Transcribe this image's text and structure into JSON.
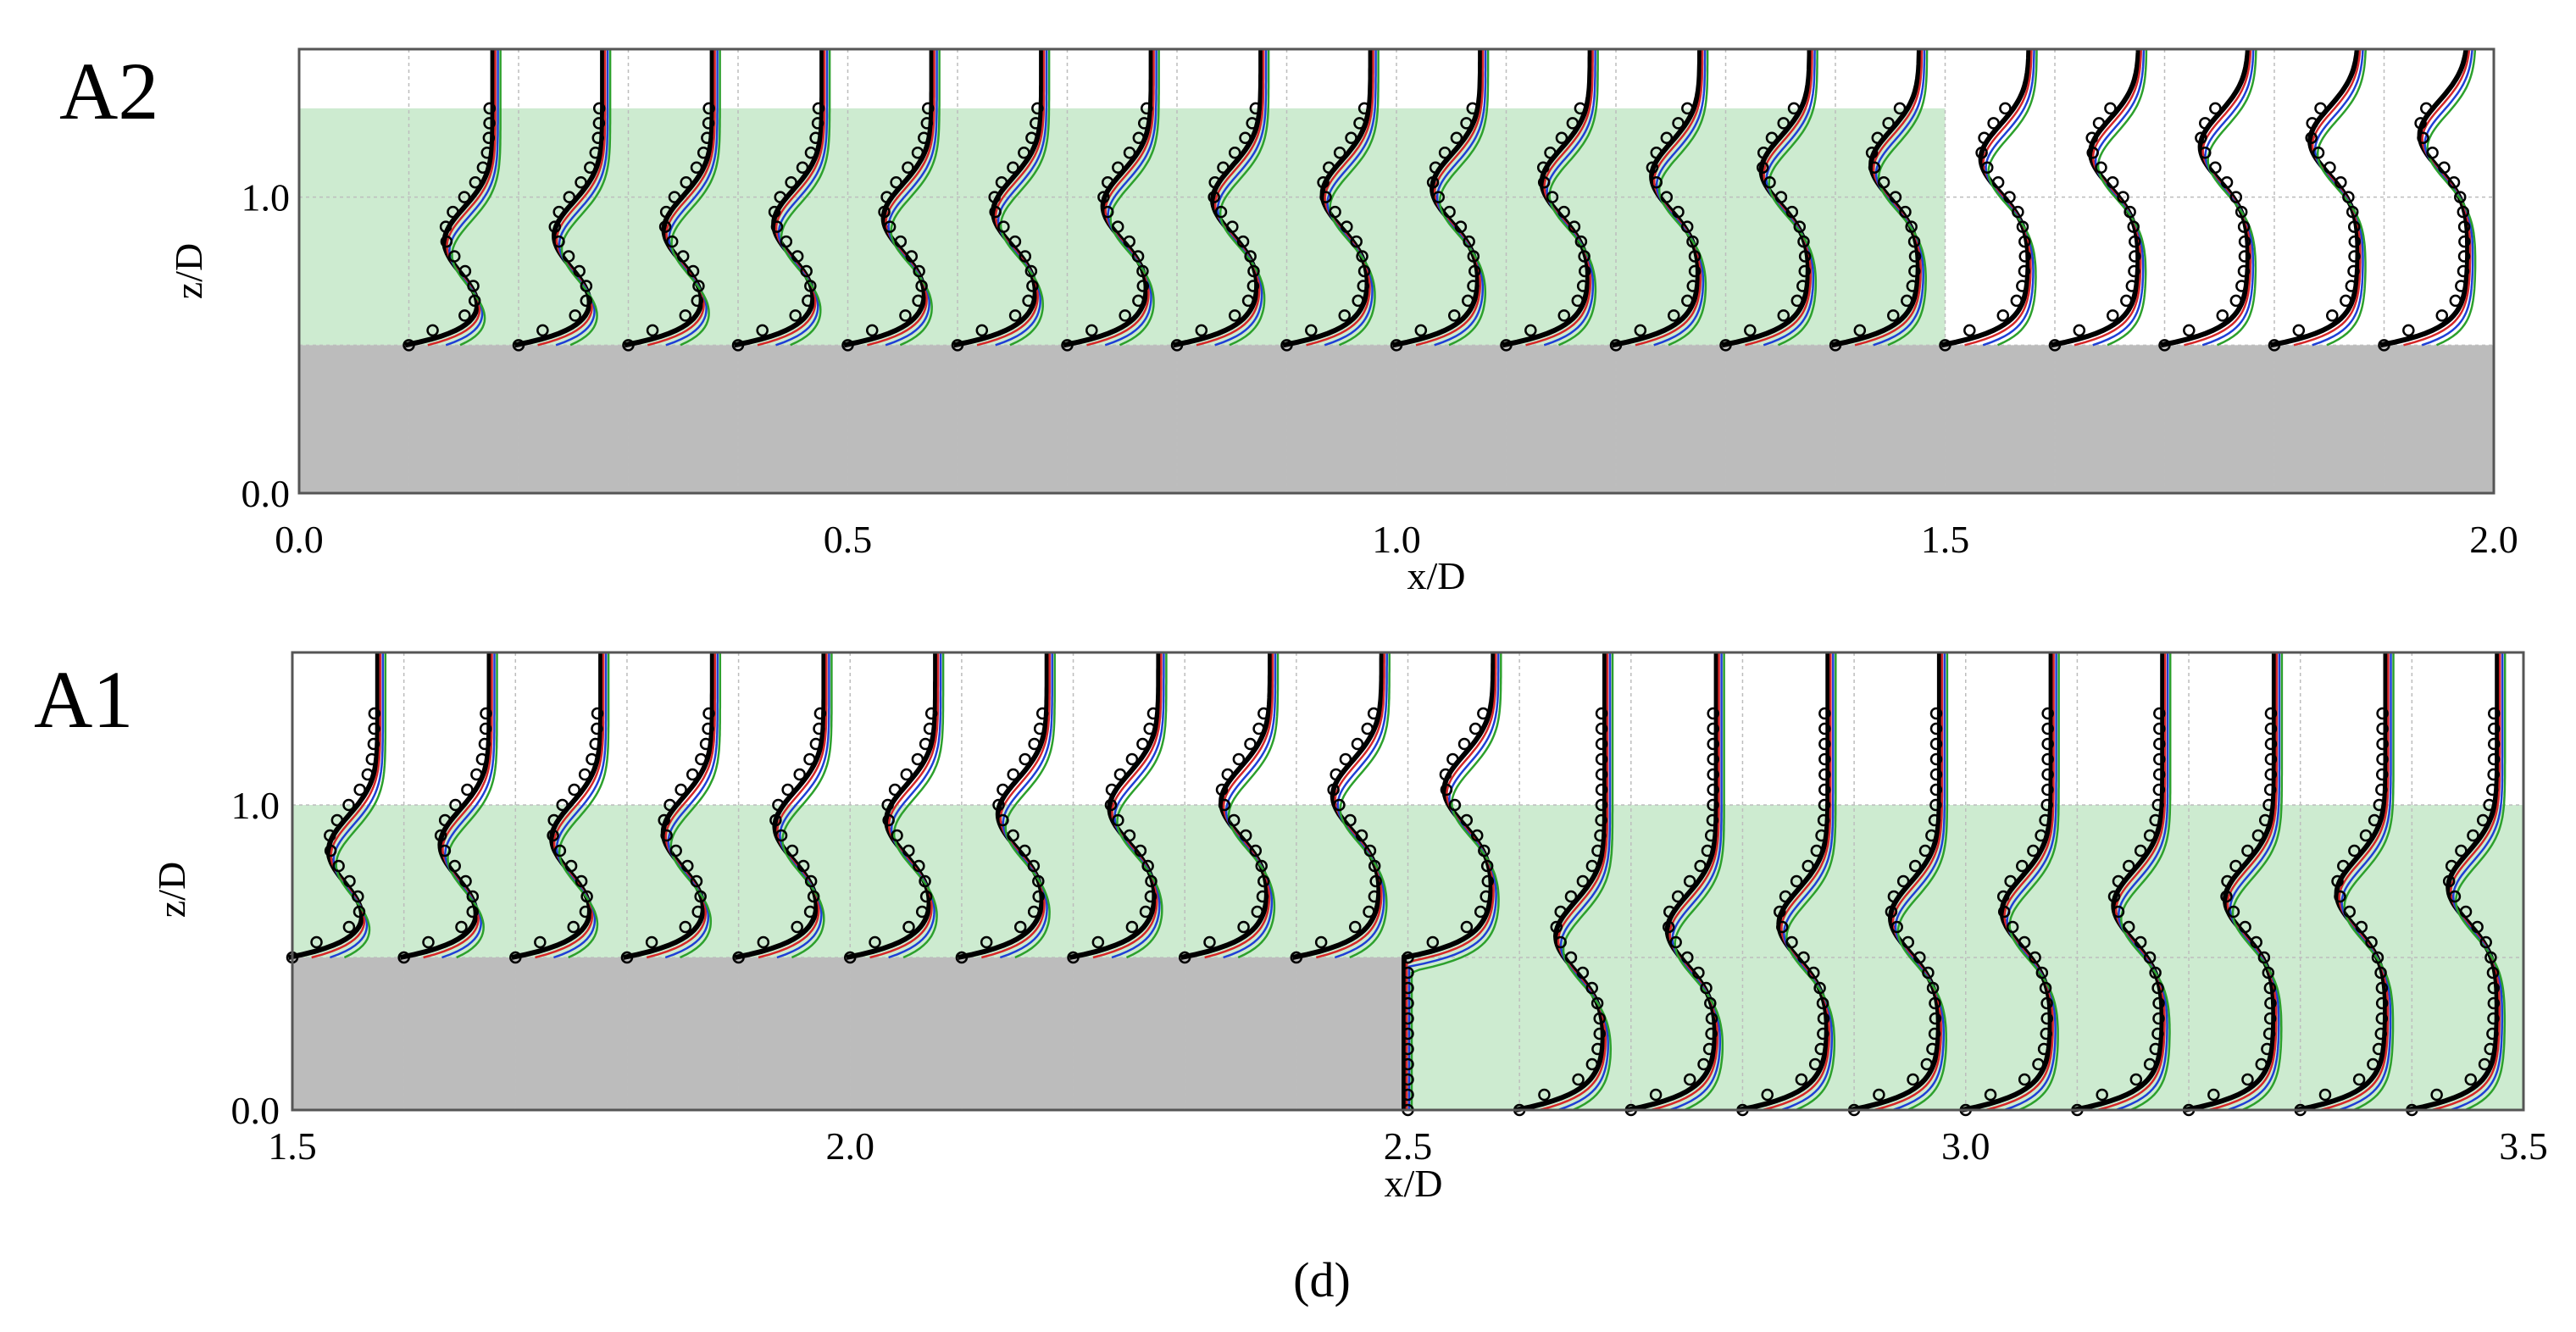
{
  "figure_label": "(d)",
  "chart_data": [
    {
      "type": "line",
      "panel_label": "A2",
      "xlabel": "x/D",
      "ylabel": "z/D",
      "xlim": [
        0.0,
        2.0
      ],
      "ylim": [
        0.0,
        1.5
      ],
      "x_ticks": [
        "0.0",
        "0.5",
        "1.0",
        "1.5",
        "2.0"
      ],
      "y_ticks": [
        "0.0",
        "1.0"
      ],
      "grid": true,
      "vegetation_region": {
        "x": [
          0.0,
          1.5
        ],
        "z": [
          0.5,
          1.3
        ]
      },
      "solid_region": {
        "x": [
          0.0,
          2.0
        ],
        "z": [
          0.0,
          0.5
        ]
      },
      "profile_stations": [
        0.1,
        0.2,
        0.3,
        0.4,
        0.5,
        0.6,
        0.7,
        0.8,
        0.9,
        1.0,
        1.1,
        1.2,
        1.3,
        1.4,
        1.5,
        1.6,
        1.7,
        1.8,
        1.9
      ],
      "series": [
        {
          "role": "measured",
          "marker": "circle",
          "color": "#000000"
        },
        {
          "role": "model-1",
          "color": "#000000",
          "style": "thick"
        },
        {
          "role": "model-2",
          "color": "#d62728"
        },
        {
          "role": "model-3",
          "color": "#1f3fd6"
        },
        {
          "role": "model-4",
          "color": "#2ca02c"
        }
      ]
    },
    {
      "type": "line",
      "panel_label": "A1",
      "xlabel": "x/D",
      "ylabel": "z/D",
      "xlim": [
        1.5,
        3.5
      ],
      "ylim": [
        0.0,
        1.5
      ],
      "x_ticks": [
        "1.5",
        "2.0",
        "2.5",
        "3.0",
        "3.5"
      ],
      "y_ticks": [
        "0.0",
        "1.0"
      ],
      "grid": true,
      "vegetation_region": {
        "x": [
          1.5,
          3.5
        ],
        "z": [
          0.0,
          1.0
        ]
      },
      "solid_region": {
        "x": [
          1.5,
          2.5
        ],
        "z": [
          0.0,
          0.5
        ]
      },
      "profile_stations": [
        1.5,
        1.6,
        1.7,
        1.8,
        1.9,
        2.0,
        2.1,
        2.2,
        2.3,
        2.4,
        2.5,
        2.6,
        2.7,
        2.8,
        2.9,
        3.0,
        3.1,
        3.2,
        3.3,
        3.4
      ],
      "series": [
        {
          "role": "measured",
          "marker": "circle",
          "color": "#000000"
        },
        {
          "role": "model-1",
          "color": "#000000",
          "style": "thick"
        },
        {
          "role": "model-2",
          "color": "#d62728"
        },
        {
          "role": "model-3",
          "color": "#1f3fd6"
        },
        {
          "role": "model-4",
          "color": "#2ca02c"
        }
      ]
    }
  ],
  "colors": {
    "vegetation": "#cdebd0",
    "solid": "#bcbcbc",
    "grid": "#bdbdbd",
    "axis": "#555555"
  }
}
